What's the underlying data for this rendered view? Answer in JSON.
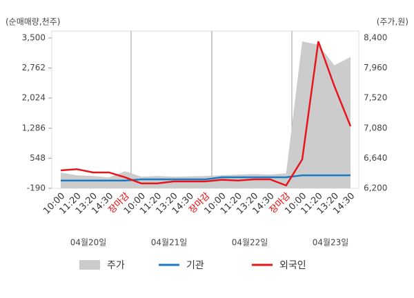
{
  "chart_data": {
    "type": "line",
    "y_label": "(순매매량,천주)",
    "y2_label": "(주가,원)",
    "categories": [
      "10:00",
      "11:20",
      "13:20",
      "14:30",
      "장마감",
      "10:00",
      "11:20",
      "13:20",
      "14:30",
      "장마감",
      "10:00",
      "11:20",
      "13:20",
      "14:30",
      "장마감",
      "10:00",
      "11:20",
      "13:20",
      "14:30"
    ],
    "category_colors": [
      "#333",
      "#333",
      "#333",
      "#333",
      "#e00",
      "#333",
      "#333",
      "#333",
      "#333",
      "#e00",
      "#333",
      "#333",
      "#333",
      "#333",
      "#e00",
      "#333",
      "#333",
      "#333",
      "#333"
    ],
    "days": [
      "04월20일",
      "04월21일",
      "04월22일",
      "04월23일"
    ],
    "series": [
      {
        "name": "주가",
        "color": "#cccccc",
        "axis": "y2",
        "kind": "area",
        "values": [
          6430,
          6390,
          6380,
          6360,
          6450,
          6370,
          6380,
          6370,
          6375,
          6380,
          6390,
          6400,
          6410,
          6400,
          6420,
          8350,
          8300,
          8000,
          8120
        ]
      },
      {
        "name": "기관",
        "color": "#1a7ac4",
        "kind": "line",
        "values": [
          0,
          0,
          0,
          0,
          0,
          30,
          30,
          30,
          30,
          30,
          80,
          80,
          80,
          80,
          80,
          130,
          130,
          130,
          130
        ]
      },
      {
        "name": "외국인",
        "color": "#e8141c",
        "kind": "line",
        "values": [
          250,
          280,
          200,
          200,
          80,
          -70,
          -70,
          -20,
          -20,
          -20,
          20,
          0,
          30,
          30,
          -120,
          520,
          3415,
          2315,
          1333
        ]
      }
    ],
    "ylim": [
      -190,
      3500
    ],
    "yticks": [
      -190,
      {
        "value": 548,
        "label": "548"
      },
      {
        "value": 1286,
        "label": "1,286"
      },
      {
        "value": 2024,
        "label": "2,024"
      },
      {
        "value": 2762,
        "label": "2,762"
      },
      {
        "value": 3500,
        "label": "3,500"
      }
    ],
    "y2lim": [
      6200,
      8400
    ],
    "y2ticks": [
      {
        "value": 6200,
        "label": "6,200"
      },
      {
        "value": 6640,
        "label": "6,640"
      },
      {
        "value": 7080,
        "label": "7,080"
      },
      {
        "value": 7520,
        "label": "7,520"
      },
      {
        "value": 7960,
        "label": "7,960"
      },
      {
        "value": 8400,
        "label": "8,400"
      }
    ]
  }
}
